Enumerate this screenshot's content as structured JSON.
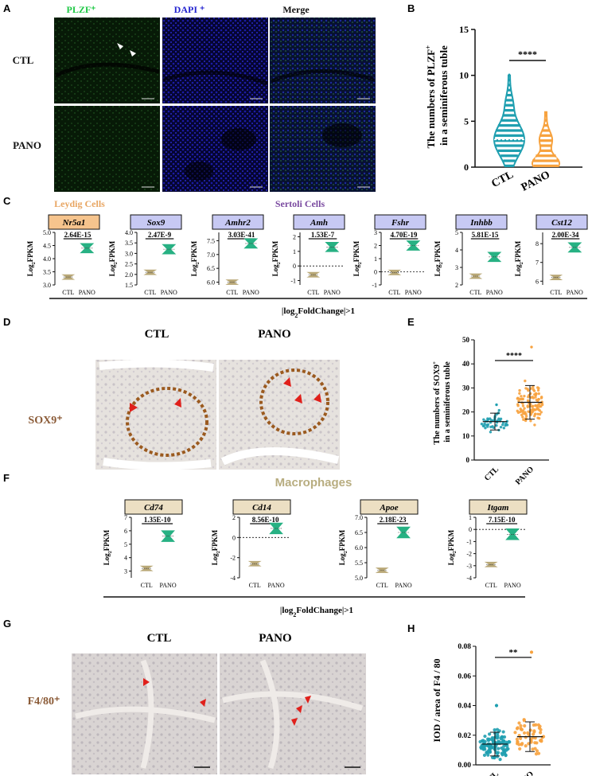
{
  "colors": {
    "ctl_teal": "#1f9fb0",
    "pano_orange": "#f7a23e",
    "gene_ctl": "#b9a877",
    "gene_pano": "#27b183",
    "leydig_header": "#f6c48d",
    "sertoli_header": "#c7c9f3",
    "macro_header": "#ecdfc3",
    "plzf_green": "#1ec845",
    "dapi_blue": "#2323d0",
    "leydig_text": "#e8a663",
    "sertoli_text": "#7a4aa0",
    "macro_text": "#b8ad80",
    "stain_text": "#8a5a36"
  },
  "panels": {
    "A": "A",
    "B": "B",
    "C": "C",
    "D": "D",
    "E": "E",
    "F": "F",
    "G": "G",
    "H": "H"
  },
  "panelA": {
    "columns": [
      "PLZF⁺",
      "DAPI ⁺",
      "Merge"
    ],
    "rows": [
      "CTL",
      "PANO"
    ],
    "scalebar": "50 μm"
  },
  "panelC": {
    "leydig": "Leydig Cells",
    "sertoli": "Sertoli Cells",
    "footer_pre": "|log",
    "footer_sub": "2",
    "footer_post": "FoldChange|>1",
    "ylabel_pre": "Log",
    "ylabel_sub": "2",
    "ylabel_post": "FPKM",
    "genes": [
      {
        "name": "Nr5a1",
        "p": "2.64E-15",
        "type": "leydig",
        "yticks": [
          "5.0",
          "4.5",
          "4.0",
          "3.5",
          "3.0"
        ],
        "ctl": 3.3,
        "pano": 4.4,
        "ymin": 3.0,
        "ymax": 5.0,
        "dotted": null
      },
      {
        "name": "Sox9",
        "p": "2.47E-9",
        "type": "sertoli",
        "yticks": [
          "4.0",
          "3.5",
          "3.0",
          "2.5",
          "2.0",
          "1.5"
        ],
        "ctl": 2.1,
        "pano": 3.2,
        "ymin": 1.5,
        "ymax": 4.0,
        "dotted": null
      },
      {
        "name": "Amhr2",
        "p": "3.03E-41",
        "type": "sertoli",
        "yticks": [
          "7.5",
          "7.0",
          "6.5",
          "6.0"
        ],
        "ctl": 6.0,
        "pano": 7.4,
        "ymin": 5.9,
        "ymax": 7.8,
        "dotted": null
      },
      {
        "name": "Amh",
        "p": "1.53E-7",
        "type": "sertoli",
        "yticks": [
          "2",
          "1",
          "0",
          "-1"
        ],
        "ctl": -0.6,
        "pano": 1.3,
        "ymin": -1.3,
        "ymax": 2.3,
        "dotted": 0
      },
      {
        "name": "Fshr",
        "p": "4.70E-19",
        "type": "sertoli",
        "yticks": [
          "3",
          "2",
          "1",
          "0",
          "-1"
        ],
        "ctl": -0.05,
        "pano": 2.0,
        "ymin": -1.0,
        "ymax": 3.0,
        "dotted": 0
      },
      {
        "name": "Inhbb",
        "p": "5.81E-15",
        "type": "sertoli",
        "yticks": [
          "5",
          "4",
          "3",
          "2"
        ],
        "ctl": 2.5,
        "pano": 3.6,
        "ymin": 2.0,
        "ymax": 5.0,
        "dotted": null
      },
      {
        "name": "Cst12",
        "p": "2.00E-34",
        "type": "sertoli",
        "yticks": [
          "8",
          "7",
          "6"
        ],
        "ctl": 6.2,
        "pano": 7.8,
        "ymin": 5.8,
        "ymax": 8.6,
        "dotted": null
      }
    ]
  },
  "panelD": {
    "cols": [
      "CTL",
      "PANO"
    ],
    "row": "SOX9⁺"
  },
  "panelF": {
    "title": "Macrophages",
    "genes": [
      {
        "name": "Cd74",
        "p": "1.35E-10",
        "yticks": [
          "7",
          "6",
          "5",
          "4",
          "3"
        ],
        "ctl": 3.2,
        "pano": 5.6,
        "ymin": 2.5,
        "ymax": 7.0,
        "dotted": null
      },
      {
        "name": "Cd14",
        "p": "8.56E-10",
        "yticks": [
          "2",
          "0",
          "-2",
          "-4"
        ],
        "ctl": -2.6,
        "pano": 0.9,
        "ymin": -4.0,
        "ymax": 2.0,
        "dotted": 0
      },
      {
        "name": "Apoe",
        "p": "2.18E-23",
        "yticks": [
          "7.0",
          "6.5",
          "6.0",
          "5.5",
          "5.0"
        ],
        "ctl": 5.25,
        "pano": 6.5,
        "ymin": 5.0,
        "ymax": 7.0,
        "dotted": null
      },
      {
        "name": "Itgam",
        "p": "7.15E-10",
        "yticks": [
          "1",
          "0",
          "-1",
          "-2",
          "-3",
          "-4"
        ],
        "ctl": -2.9,
        "pano": -0.4,
        "ymin": -4.0,
        "ymax": 1.0,
        "dotted": 0
      }
    ]
  },
  "panelG": {
    "cols": [
      "CTL",
      "PANO"
    ],
    "row": "F4/80⁺"
  },
  "chart_data": [
    {
      "panel": "B",
      "type": "violin",
      "ylabel": "The numbers of PLZF⁺ in a seminiferous tuble",
      "categories": [
        "CTL",
        "PANO"
      ],
      "ylim": [
        0,
        15
      ],
      "yticks": [
        0,
        5,
        10,
        15
      ],
      "summary": [
        {
          "name": "CTL",
          "median": 3,
          "max": 10,
          "min": 0
        },
        {
          "name": "PANO",
          "median": 1,
          "max": 6,
          "min": 0
        }
      ],
      "significance": "****"
    },
    {
      "panel": "E",
      "type": "scatter",
      "ylabel": "The numbers of SOX9⁺ in a seminiferous tuble",
      "categories": [
        "CTL",
        "PANO"
      ],
      "ylim": [
        0,
        50
      ],
      "yticks": [
        0,
        10,
        20,
        30,
        40,
        50
      ],
      "summary": [
        {
          "name": "CTL",
          "mean": 16,
          "sd": 3.5,
          "n": 45,
          "min": 9,
          "max": 23
        },
        {
          "name": "PANO",
          "mean": 24,
          "sd": 7,
          "n": 110,
          "min": 8,
          "max": 47
        }
      ],
      "significance": "****"
    },
    {
      "panel": "H",
      "type": "scatter",
      "ylabel": "IOD / area of F4 / 80",
      "categories": [
        "CTL",
        "PANO"
      ],
      "ylim": [
        0,
        0.08
      ],
      "yticks": [
        "0.00",
        "0.02",
        "0.04",
        "0.06",
        "0.08"
      ],
      "summary": [
        {
          "name": "CTL",
          "mean": 0.014,
          "sd": 0.008,
          "n": 120,
          "max": 0.04
        },
        {
          "name": "PANO",
          "mean": 0.019,
          "sd": 0.01,
          "n": 55,
          "max": 0.076
        }
      ],
      "significance": "**"
    }
  ]
}
